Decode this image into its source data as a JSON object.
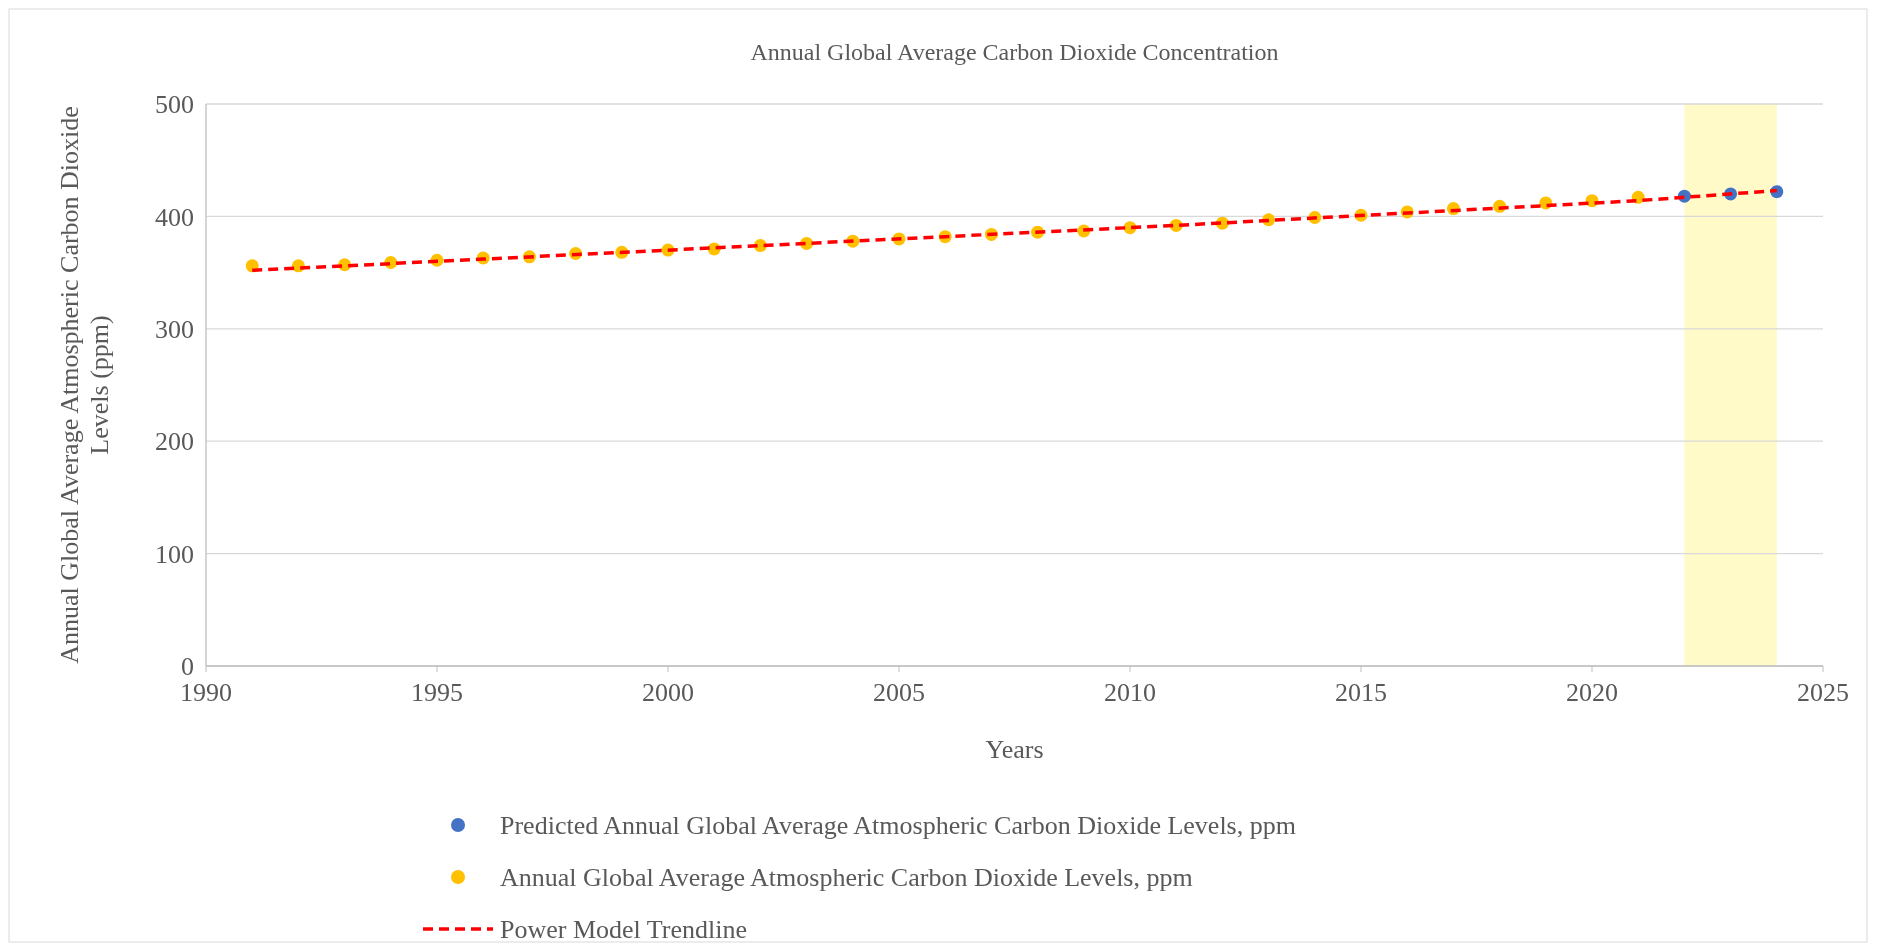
{
  "chart_data": {
    "type": "scatter",
    "title": "Annual Global Average Carbon Dioxide Concentration",
    "xlabel": "Years",
    "ylabel": "Annual Global Average Atmospheric Carbon Dioxide Levels (ppm)",
    "xlim": [
      1990,
      2025
    ],
    "xticks": [
      1990,
      1995,
      2000,
      2005,
      2010,
      2015,
      2020,
      2025
    ],
    "ylim": [
      0,
      500
    ],
    "yticks": [
      0,
      100,
      200,
      300,
      400,
      500
    ],
    "grid": "y",
    "legend": "bottom",
    "marker": "circle",
    "bands": [
      {
        "axis": "x",
        "from": 2022,
        "to": 2024,
        "color": "#fffac8"
      }
    ],
    "series": [
      {
        "name": "Predicted Annual Global Average Atmospheric Carbon Dioxide Levels, ppm",
        "color": "#4472c4",
        "x": [
          2022,
          2023,
          2024
        ],
        "values": [
          418,
          420,
          422
        ]
      },
      {
        "name": "Annual Global Average Atmospheric Carbon Dioxide Levels, ppm",
        "color": "#ffc000",
        "x": [
          1991,
          1992,
          1993,
          1994,
          1995,
          1996,
          1997,
          1998,
          1999,
          2000,
          2001,
          2002,
          2003,
          2004,
          2005,
          2006,
          2007,
          2008,
          2009,
          2010,
          2011,
          2012,
          2013,
          2014,
          2015,
          2016,
          2017,
          2018,
          2019,
          2020,
          2021
        ],
        "values": [
          356,
          356,
          357,
          359,
          361,
          363,
          364,
          367,
          368,
          370,
          371,
          374,
          376,
          378,
          380,
          382,
          384,
          386,
          387,
          390,
          392,
          394,
          397,
          399,
          401,
          404,
          407,
          409,
          412,
          414,
          417
        ]
      },
      {
        "name": "Power Model Trendline",
        "type": "line",
        "color": "#ff0000",
        "line_style": "dashed",
        "marker": "none",
        "x": [
          1991,
          1996,
          2001,
          2006,
          2011,
          2016,
          2021,
          2024
        ],
        "values": [
          352,
          362,
          372,
          382,
          392,
          403,
          414,
          423
        ]
      }
    ]
  }
}
